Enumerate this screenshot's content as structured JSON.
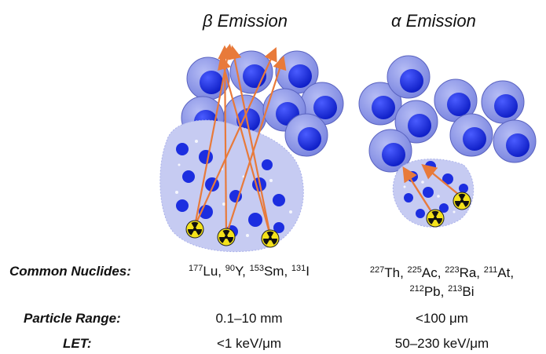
{
  "headers": {
    "beta": "β Emission",
    "alpha": "α Emission"
  },
  "rows": {
    "nuclides": {
      "label": "Common Nuclides:",
      "beta": [
        {
          "mass": "177",
          "sym": "Lu",
          "sep": ", "
        },
        {
          "mass": "90",
          "sym": "Y",
          "sep": ", "
        },
        {
          "mass": "153",
          "sym": "Sm",
          "sep": ", "
        },
        {
          "mass": "131",
          "sym": "I",
          "sep": ""
        }
      ],
      "alpha_line1": [
        {
          "mass": "227",
          "sym": "Th",
          "sep": ", "
        },
        {
          "mass": "225",
          "sym": "Ac",
          "sep": ", "
        },
        {
          "mass": "223",
          "sym": "Ra",
          "sep": ", "
        },
        {
          "mass": "211",
          "sym": "At",
          "sep": ","
        }
      ],
      "alpha_line2": [
        {
          "mass": "212",
          "sym": "Pb",
          "sep": ", "
        },
        {
          "mass": "213",
          "sym": "Bi",
          "sep": ""
        }
      ]
    },
    "range": {
      "label": "Particle Range:",
      "beta": "0.1–10 mm",
      "alpha": "<100 μm"
    },
    "let": {
      "label": "LET:",
      "beta": "<1 keV/μm",
      "alpha": "50–230 keV/μm"
    }
  },
  "colors": {
    "cell_outer": "#8b95e8",
    "cell_nucleus": "#1c2ee0",
    "tumor_fill": "#c6cbf2",
    "arrow": "#e87a3a",
    "radiation_yellow": "#f4e21a"
  },
  "icons": [
    "radiation-icon"
  ]
}
